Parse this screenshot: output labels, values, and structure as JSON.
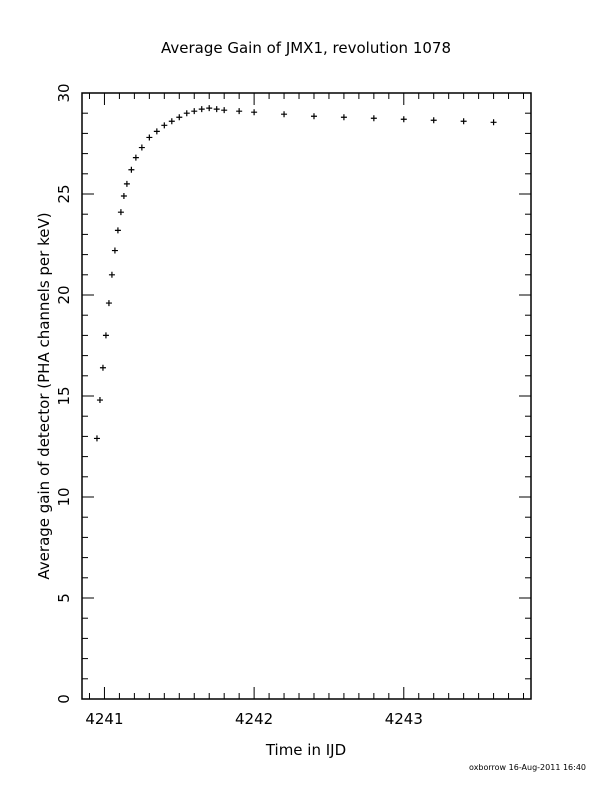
{
  "chart_data": {
    "type": "scatter",
    "title": "Average Gain of JMX1, revolution 1078",
    "xlabel": "Time in IJD",
    "ylabel": "Average gain of detector (PHA channels per keV)",
    "xlim": [
      4240.85,
      4243.85
    ],
    "ylim": [
      0,
      30
    ],
    "xticks": [
      4241,
      4242,
      4243
    ],
    "yticks": [
      0,
      5,
      10,
      15,
      20,
      25,
      30
    ],
    "marker": "plus",
    "grid": false,
    "series": [
      {
        "x": [
          4240.95,
          4240.97,
          4240.99,
          4241.01,
          4241.03,
          4241.05,
          4241.07,
          4241.09,
          4241.11,
          4241.13,
          4241.15,
          4241.18,
          4241.21,
          4241.25,
          4241.3,
          4241.35,
          4241.4,
          4241.45,
          4241.5,
          4241.55,
          4241.6,
          4241.65,
          4241.7,
          4241.75,
          4241.8,
          4241.9,
          4242.0,
          4242.2,
          4242.4,
          4242.6,
          4242.8,
          4243.0,
          4243.2,
          4243.4,
          4243.6
        ],
        "y": [
          12.9,
          14.8,
          16.4,
          18.0,
          19.6,
          21.0,
          22.2,
          23.2,
          24.1,
          24.9,
          25.5,
          26.2,
          26.8,
          27.3,
          27.8,
          28.1,
          28.4,
          28.6,
          28.8,
          29.0,
          29.1,
          29.2,
          29.25,
          29.2,
          29.15,
          29.1,
          29.05,
          28.95,
          28.85,
          28.8,
          28.75,
          28.7,
          28.65,
          28.6,
          28.55
        ]
      }
    ]
  },
  "footer": {
    "stamp": "oxborrow 16-Aug-2011 16:40"
  }
}
